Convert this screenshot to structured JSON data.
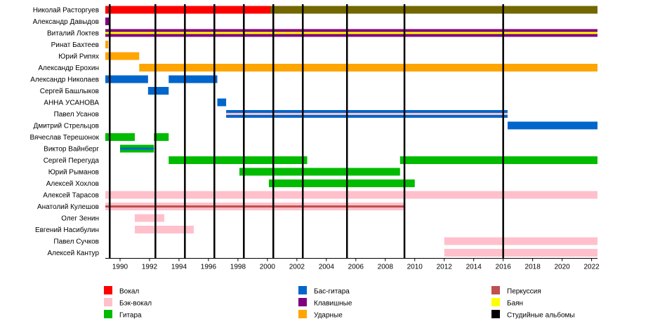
{
  "chart_data": {
    "type": "timeline",
    "title": "",
    "xlabel": "",
    "ylabel": "",
    "xlim": [
      1989,
      2022.4
    ],
    "grid": false,
    "colors": {
      "vocal": "#ff0000",
      "backvocal": "#ffc0cb",
      "guitar": "#00bb00",
      "bass": "#0066cc",
      "keys": "#800080",
      "drums": "#ffa500",
      "percussion": "#c0504d",
      "bayan": "#ffff00",
      "album": "#000000"
    },
    "legend": [
      {
        "role": "vocal",
        "label": "Вокал"
      },
      {
        "role": "backvocal",
        "label": "Бэк-вокал"
      },
      {
        "role": "guitar",
        "label": "Гитара"
      },
      {
        "role": "bass",
        "label": "Бас-гитара"
      },
      {
        "role": "keys",
        "label": "Клавишные"
      },
      {
        "role": "drums",
        "label": "Ударные"
      },
      {
        "role": "percussion",
        "label": "Перкуссия"
      },
      {
        "role": "bayan",
        "label": "Баян"
      },
      {
        "role": "album",
        "label": "Студийные альбомы"
      }
    ],
    "ticks": [
      "1990",
      "1992",
      "1994",
      "1996",
      "1998",
      "2000",
      "2002",
      "2004",
      "2006",
      "2008",
      "2010",
      "2012",
      "2014",
      "2016",
      "2018",
      "2020",
      "2022"
    ],
    "members": [
      {
        "name": "Николай Расторгуев",
        "bars": [
          {
            "role": "vocal",
            "start": 1989,
            "end": 2022.4
          }
        ],
        "overlays": [
          {
            "role": "guitar",
            "start": 2000.2,
            "end": 2022.4,
            "opacity": 0.55
          }
        ]
      },
      {
        "name": "Александр Давыдов",
        "bars": [
          {
            "role": "keys",
            "start": 1989,
            "end": 1989.3
          }
        ],
        "overlays": []
      },
      {
        "name": "Виталий Локтев",
        "bars": [
          {
            "role": "keys",
            "start": 1989,
            "end": 2022.4
          }
        ],
        "overlays": [
          {
            "role": "bayan",
            "start": 1989,
            "end": 2022.4,
            "thin": true
          }
        ]
      },
      {
        "name": "Ринат Бахтеев",
        "bars": [
          {
            "role": "drums",
            "start": 1989,
            "end": 1989.2
          }
        ],
        "overlays": []
      },
      {
        "name": "Юрий Рипях",
        "bars": [
          {
            "role": "drums",
            "start": 1989,
            "end": 1991.3
          }
        ],
        "overlays": []
      },
      {
        "name": "Александр Ерохин",
        "bars": [
          {
            "role": "drums",
            "start": 1991.3,
            "end": 2022.4
          }
        ],
        "overlays": []
      },
      {
        "name": "Александр Николаев",
        "bars": [
          {
            "role": "bass",
            "start": 1989,
            "end": 1991.9
          },
          {
            "role": "bass",
            "start": 1993.3,
            "end": 1996.6
          }
        ],
        "overlays": []
      },
      {
        "name": "Сергей Башлыков",
        "bars": [
          {
            "role": "bass",
            "start": 1991.9,
            "end": 1993.3
          }
        ],
        "overlays": []
      },
      {
        "name": "АННА УСАНОВА",
        "bars": [
          {
            "role": "bass",
            "start": 1996.6,
            "end": 1997.2
          }
        ],
        "overlays": []
      },
      {
        "name": "Павел Усанов",
        "bars": [
          {
            "role": "bass",
            "start": 1997.2,
            "end": 2016.3
          }
        ],
        "overlays": [
          {
            "role": "backvocal",
            "start": 1997.2,
            "end": 2016.3,
            "thin": true
          }
        ]
      },
      {
        "name": "Дмитрий Стрельцов",
        "bars": [
          {
            "role": "bass",
            "start": 2016.3,
            "end": 2022.4
          }
        ],
        "overlays": []
      },
      {
        "name": "Вячеслав Терешонок",
        "bars": [
          {
            "role": "guitar",
            "start": 1989,
            "end": 1991
          },
          {
            "role": "guitar",
            "start": 1992.3,
            "end": 1993.3
          }
        ],
        "overlays": []
      },
      {
        "name": "Виктор Вайнберг",
        "bars": [
          {
            "role": "guitar",
            "start": 1990,
            "end": 1992.3
          }
        ],
        "overlays": [
          {
            "role": "bass",
            "start": 1990,
            "end": 1992.3,
            "thin": true
          }
        ]
      },
      {
        "name": "Сергей Перегуда",
        "bars": [
          {
            "role": "guitar",
            "start": 1993.3,
            "end": 2002.7
          },
          {
            "role": "guitar",
            "start": 2009,
            "end": 2022.4
          }
        ],
        "overlays": []
      },
      {
        "name": "Юрий Рымaнов",
        "bars": [
          {
            "role": "guitar",
            "start": 1998.1,
            "end": 2009
          }
        ],
        "overlays": []
      },
      {
        "name": "Алексей Хохлов",
        "bars": [
          {
            "role": "guitar",
            "start": 2000.1,
            "end": 2010
          }
        ],
        "overlays": []
      },
      {
        "name": "Алексей Тарасов",
        "bars": [
          {
            "role": "backvocal",
            "start": 1989,
            "end": 2022.4
          }
        ],
        "overlays": []
      },
      {
        "name": "Анатолий Кулешов",
        "bars": [
          {
            "role": "backvocal",
            "start": 1989,
            "end": 2009.3
          }
        ],
        "overlays": [
          {
            "role": "percussion",
            "start": 1989,
            "end": 2009.3,
            "thin": true
          }
        ]
      },
      {
        "name": "Олег Зенин",
        "bars": [
          {
            "role": "backvocal",
            "start": 1991,
            "end": 1993
          }
        ],
        "overlays": []
      },
      {
        "name": "Евгений Насибулин",
        "bars": [
          {
            "role": "backvocal",
            "start": 1991,
            "end": 1995
          }
        ],
        "overlays": []
      },
      {
        "name": "Павел Сучков",
        "bars": [
          {
            "role": "backvocal",
            "start": 2012,
            "end": 2022.4
          }
        ],
        "overlays": []
      },
      {
        "name": "Алексей Кантур",
        "bars": [
          {
            "role": "backvocal",
            "start": 2012,
            "end": 2022.4
          }
        ],
        "overlays": []
      }
    ],
    "albums": [
      1989.3,
      1992.4,
      1994.4,
      1996.4,
      1998.4,
      2000.4,
      2002.4,
      2005.4,
      2009.3,
      2016.0
    ]
  }
}
